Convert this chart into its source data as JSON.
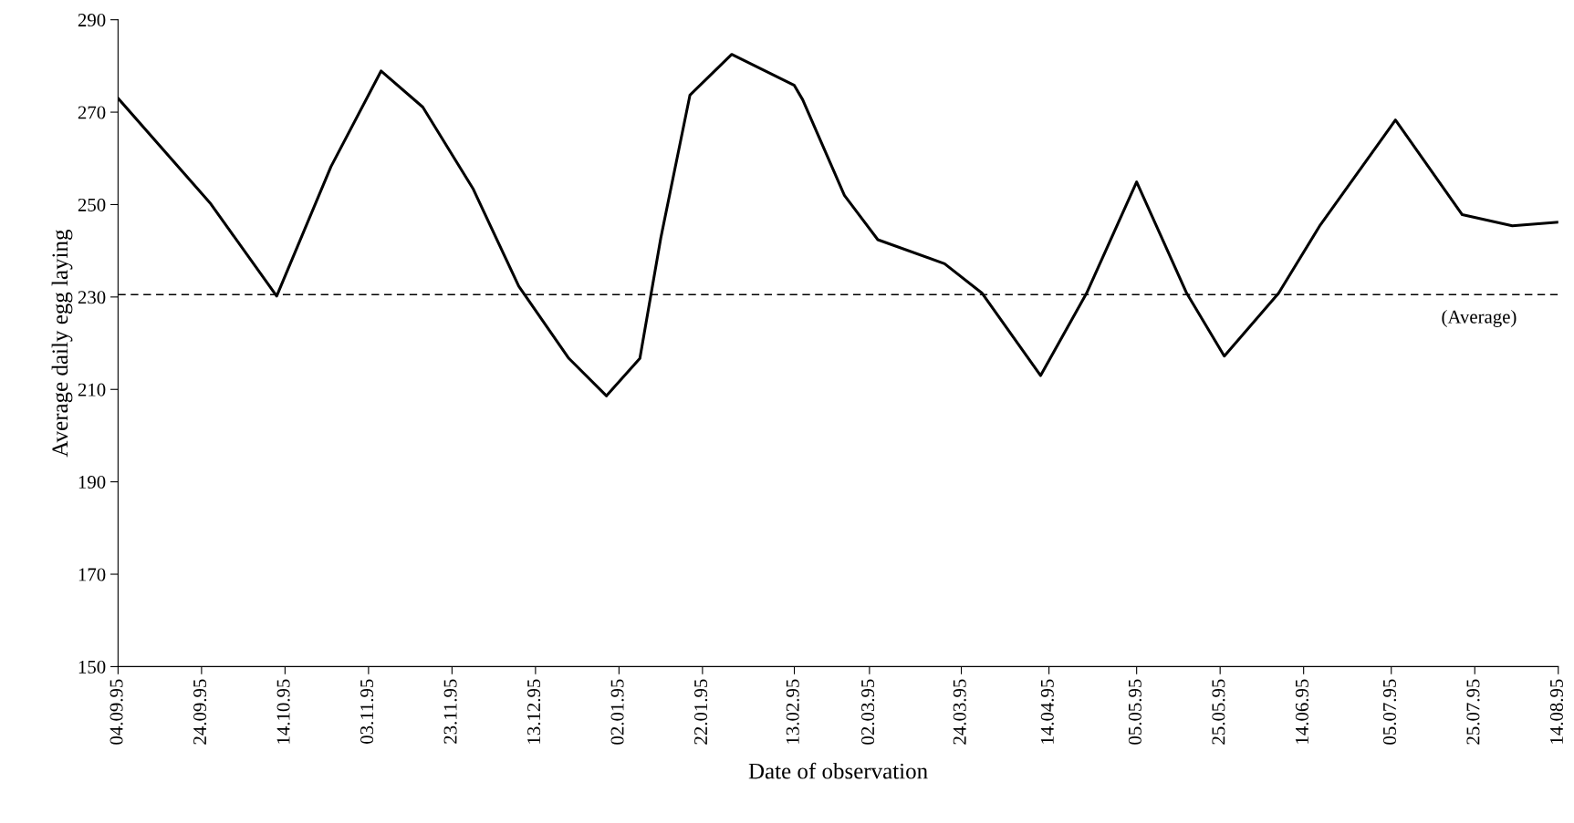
{
  "chart_data": {
    "type": "line",
    "xlabel": "Date of observation",
    "ylabel": "Average daily egg laying",
    "x": [
      "1995-09-04",
      "1995-09-26",
      "1995-10-12",
      "1995-10-25",
      "1995-11-06",
      "1995-11-16",
      "1995-11-28",
      "1995-12-09",
      "1995-12-21",
      "1995-12-30",
      "1996-01-07",
      "1996-01-12",
      "1996-01-19",
      "1996-01-29",
      "1996-02-13",
      "1996-02-15",
      "1996-02-25",
      "1996-03-04",
      "1996-03-20",
      "1996-03-29",
      "1996-04-12",
      "1996-04-23",
      "1996-05-05",
      "1996-05-17",
      "1996-05-26",
      "1996-06-08",
      "1996-06-18",
      "1996-07-06",
      "1996-07-22",
      "1996-08-03",
      "1996-08-14"
    ],
    "series": [
      {
        "color": "#000000",
        "values": [
          273,
          250.4,
          230.2,
          258.2,
          278.9,
          271.1,
          253.5,
          232.3,
          216.7,
          208.6,
          216.7,
          242.7,
          273.7,
          282.5,
          275.8,
          272.7,
          252,
          242.4,
          237.2,
          230.8,
          213,
          230.8,
          254.9,
          230.8,
          217.2,
          230.8,
          245.6,
          268.3,
          247.8,
          245.4,
          246.2
        ]
      }
    ],
    "xlim": [
      "1995-09-04",
      "1996-08-14"
    ],
    "xticks": [
      {
        "value": "1995-09-04",
        "label": "04.09.95"
      },
      {
        "value": "1995-09-24",
        "label": "24.09.95"
      },
      {
        "value": "1995-10-14",
        "label": "14.10.95"
      },
      {
        "value": "1995-11-03",
        "label": "03.11.95"
      },
      {
        "value": "1995-11-23",
        "label": "23.11.95"
      },
      {
        "value": "1995-12-13",
        "label": "13.12.95"
      },
      {
        "value": "1996-01-02",
        "label": "02.01.95"
      },
      {
        "value": "1996-01-22",
        "label": "22.01.95"
      },
      {
        "value": "1996-02-13",
        "label": "13.02.95"
      },
      {
        "value": "1996-03-02",
        "label": "02.03.95"
      },
      {
        "value": "1996-03-24",
        "label": "24.03.95"
      },
      {
        "value": "1996-04-14",
        "label": "14.04.95"
      },
      {
        "value": "1996-05-05",
        "label": "05.05.95"
      },
      {
        "value": "1996-05-25",
        "label": "25.05.95"
      },
      {
        "value": "1996-06-14",
        "label": "14.06.95"
      },
      {
        "value": "1996-07-05",
        "label": "05.07.95"
      },
      {
        "value": "1996-07-25",
        "label": "25.07.95"
      },
      {
        "value": "1996-08-14",
        "label": "14.08.95"
      }
    ],
    "ylim": [
      150,
      290
    ],
    "yticks": [
      150,
      170,
      190,
      210,
      230,
      250,
      270,
      290
    ],
    "ref_lines": [
      {
        "axis": "y",
        "value": 230.5,
        "label": "(Average)",
        "color": "#000000",
        "line_style": "dashed"
      }
    ],
    "grid": false,
    "legend": false,
    "marker": "none",
    "line_style": "solid"
  }
}
